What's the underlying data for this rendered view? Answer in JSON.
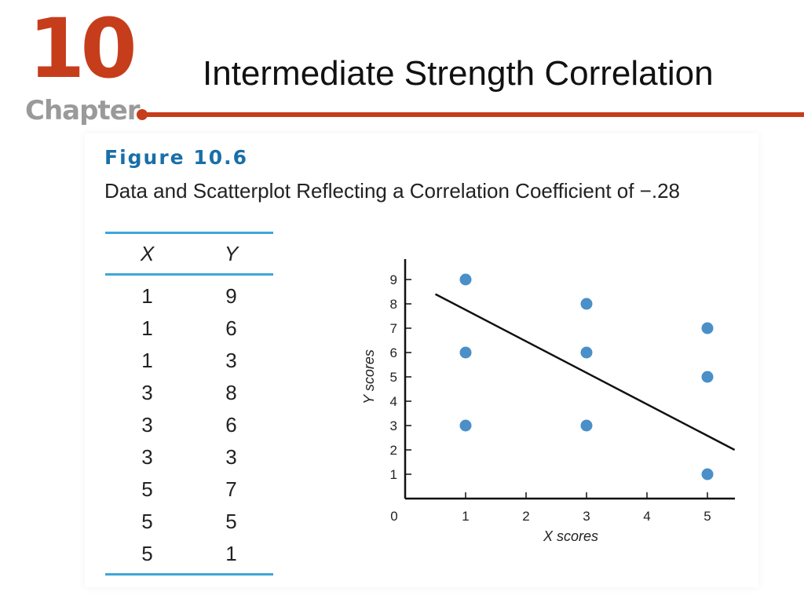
{
  "header": {
    "chapter_number": "10",
    "chapter_word": "Chapter",
    "title": "Intermediate Strength Correlation"
  },
  "figure": {
    "label": "Figure 10.6",
    "caption": "Data and Scatterplot Reflecting a Correlation Coefficient of −.28"
  },
  "table": {
    "headers": [
      "X",
      "Y"
    ],
    "rows": [
      [
        "1",
        "9"
      ],
      [
        "1",
        "6"
      ],
      [
        "1",
        "3"
      ],
      [
        "3",
        "8"
      ],
      [
        "3",
        "6"
      ],
      [
        "3",
        "3"
      ],
      [
        "5",
        "7"
      ],
      [
        "5",
        "5"
      ],
      [
        "5",
        "1"
      ]
    ]
  },
  "chart_data": {
    "type": "scatter",
    "title": "",
    "xlabel": "X scores",
    "ylabel": "Y scores",
    "xlim": [
      0,
      5.5
    ],
    "ylim": [
      0,
      10
    ],
    "x_ticks": [
      0,
      1,
      2,
      3,
      4,
      5
    ],
    "y_ticks": [
      1,
      2,
      3,
      4,
      5,
      6,
      7,
      8,
      9
    ],
    "grid": false,
    "point_color": "#4a8fc8",
    "points": [
      {
        "x": 1,
        "y": 9
      },
      {
        "x": 1,
        "y": 6
      },
      {
        "x": 1,
        "y": 3
      },
      {
        "x": 3,
        "y": 8
      },
      {
        "x": 3,
        "y": 6
      },
      {
        "x": 3,
        "y": 3
      },
      {
        "x": 5,
        "y": 7
      },
      {
        "x": 5,
        "y": 5
      },
      {
        "x": 5,
        "y": 1
      }
    ],
    "trend_line": {
      "x1": 0.5,
      "y1": 8.4,
      "x2": 5.45,
      "y2": 2.0
    }
  }
}
